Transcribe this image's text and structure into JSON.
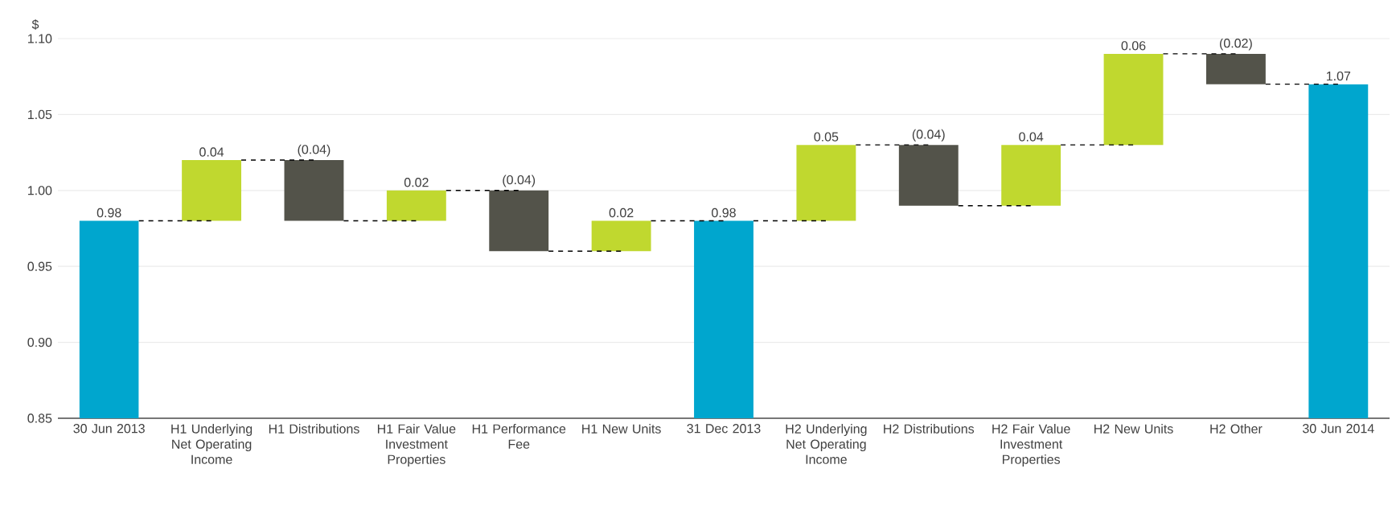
{
  "chart_data": {
    "type": "bar",
    "ylabel": "$",
    "categories": [
      "30 Jun 2013",
      "H1 Underlying Net Operating Income",
      "H1 Distributions",
      "H1 Fair Value Investment Properties",
      "H1 Performance Fee",
      "H1 New Units",
      "31 Dec 2013",
      "H2 Underlying Net Operating Income",
      "H2 Distributions",
      "H2 Fair Value Investment Properties",
      "H2 New Units",
      "H2 Other",
      "30 Jun 2014"
    ],
    "values": [
      0.98,
      0.04,
      -0.04,
      0.02,
      -0.04,
      0.02,
      0.98,
      0.05,
      -0.04,
      0.04,
      0.06,
      -0.02,
      1.07
    ],
    "base": [
      null,
      0.98,
      1.02,
      0.98,
      1.0,
      0.96,
      null,
      0.98,
      1.03,
      0.99,
      1.03,
      1.09,
      null
    ],
    "colors": [
      "#00a6ce",
      "#c0d82f",
      "#53534a",
      "#c0d82f",
      "#53534a",
      "#c0d82f",
      "#00a6ce",
      "#c0d82f",
      "#53534a",
      "#c0d82f",
      "#c0d82f",
      "#53534a",
      "#00a6ce"
    ],
    "value_labels": [
      "0.98",
      "0.04",
      "(0.04)",
      "0.02",
      "(0.04)",
      "0.02",
      "0.98",
      "0.05",
      "(0.04)",
      "0.04",
      "0.06",
      "(0.02)",
      "1.07"
    ],
    "ylim": [
      0.85,
      1.1
    ],
    "yticks": [
      {
        "value": 0.85,
        "label": "0.85"
      },
      {
        "value": 0.9,
        "label": "0.90"
      },
      {
        "value": 0.95,
        "label": "0.95"
      },
      {
        "value": 1.0,
        "label": "1.00"
      },
      {
        "value": 1.05,
        "label": "1.05"
      },
      {
        "value": 1.1,
        "label": "1.10"
      }
    ],
    "grid": "y"
  }
}
